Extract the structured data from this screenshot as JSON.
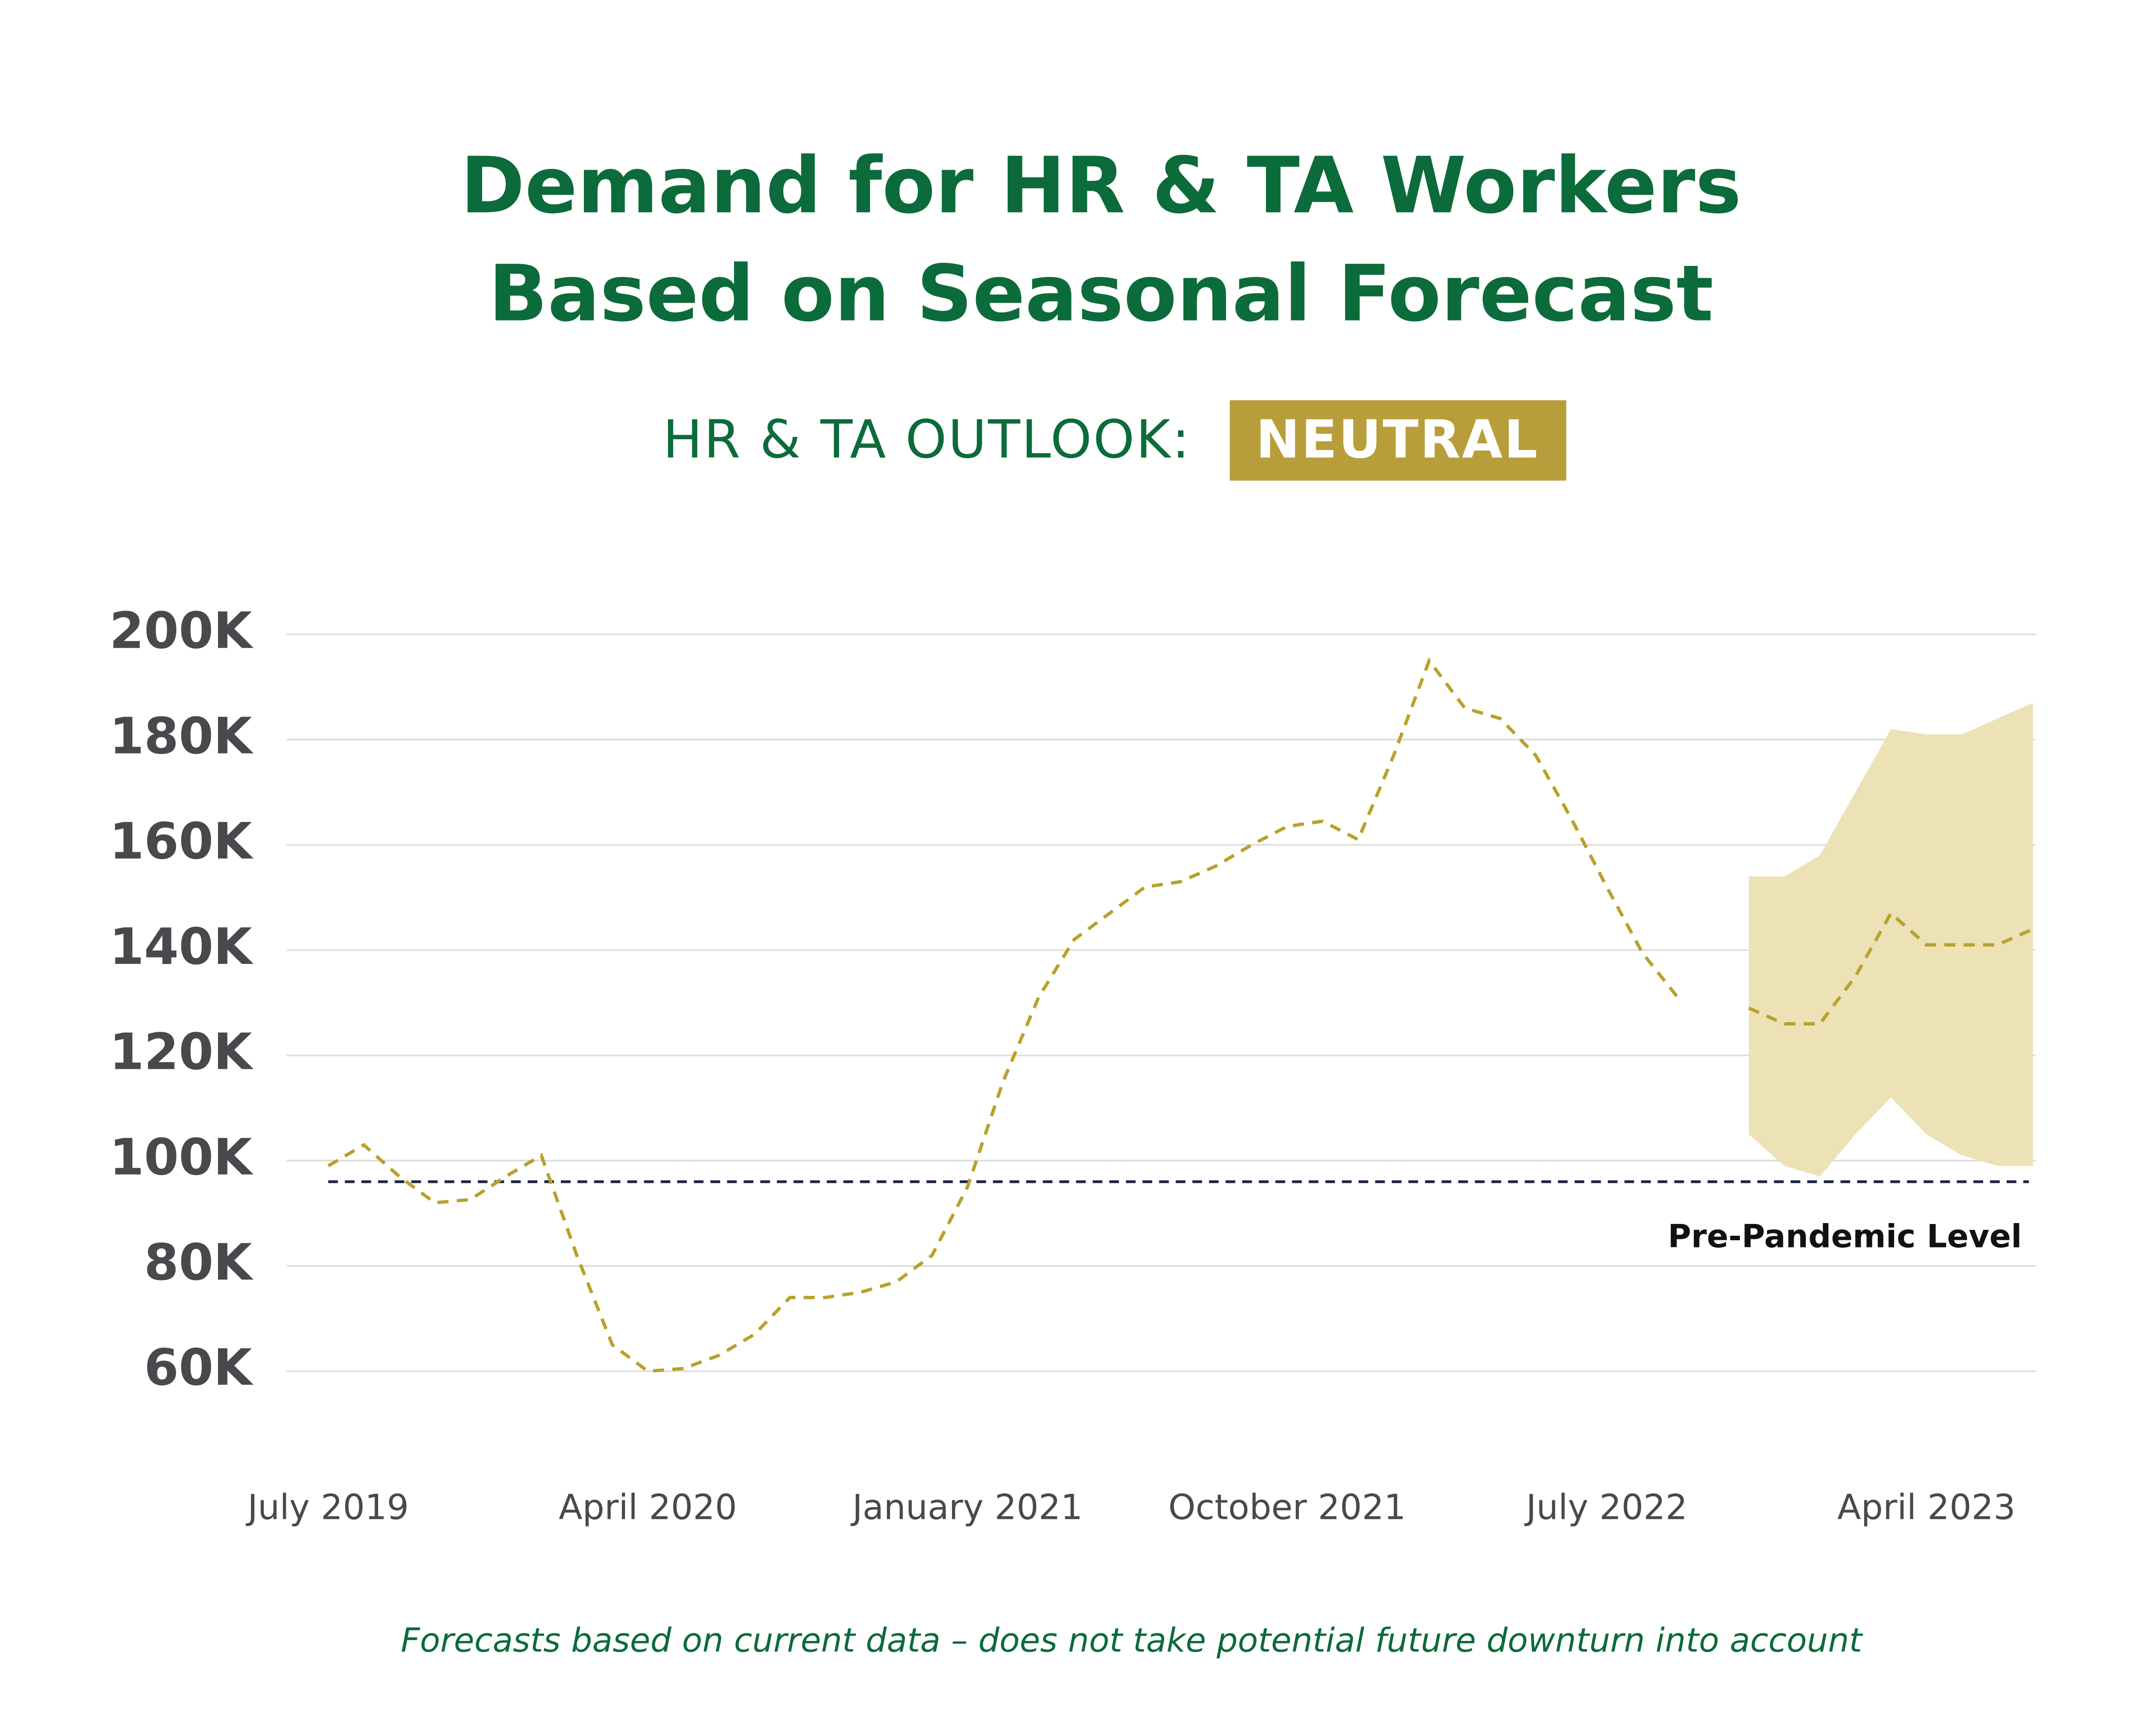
{
  "chart_data": {
    "type": "line",
    "title": [
      "Demand for HR & TA Workers",
      "Based on Seasonal Forecast"
    ],
    "subtitle": "HR & TA OUTLOOK:",
    "outlook": "NEUTRAL",
    "outlook_color": "#b89e3a",
    "footnote": "Forecasts based on current data – does not take potential future downturn into account",
    "categories": [
      "July 2019",
      null,
      null,
      null,
      null,
      null,
      null,
      null,
      null,
      "April 2020",
      null,
      null,
      null,
      null,
      null,
      null,
      null,
      null,
      "January 2021",
      null,
      null,
      null,
      null,
      null,
      null,
      null,
      null,
      "October 2021",
      null,
      null,
      null,
      null,
      null,
      null,
      null,
      null,
      "July 2022",
      null,
      null,
      null,
      null,
      null,
      null,
      null,
      null,
      "April 2023",
      null,
      null,
      null
    ],
    "series": [
      {
        "color": "#b8a22a",
        "dashed": true,
        "values": [
          99,
          103,
          97,
          92,
          92.6,
          97,
          101,
          82,
          65,
          60,
          60.5,
          63,
          67,
          74,
          74,
          75,
          77,
          82,
          95,
          115,
          131,
          142,
          147,
          152,
          153,
          156,
          160,
          163.5,
          164.5,
          161,
          177,
          195,
          186,
          184,
          177,
          165,
          152,
          139.5,
          131,
          null,
          null,
          null,
          null,
          null,
          null,
          null,
          null,
          null,
          null
        ]
      },
      {
        "color": "#b8a22a",
        "dashed": true,
        "values": [
          null,
          null,
          null,
          null,
          null,
          null,
          null,
          null,
          null,
          null,
          null,
          null,
          null,
          null,
          null,
          null,
          null,
          null,
          null,
          null,
          null,
          null,
          null,
          null,
          null,
          null,
          null,
          null,
          null,
          null,
          null,
          null,
          null,
          null,
          null,
          null,
          null,
          null,
          null,
          null,
          129,
          126,
          126,
          135,
          147,
          141,
          141,
          141,
          144
        ]
      }
    ],
    "band": {
      "color": "#ede2b5",
      "upper": [
        null,
        null,
        null,
        null,
        null,
        null,
        null,
        null,
        null,
        null,
        null,
        null,
        null,
        null,
        null,
        null,
        null,
        null,
        null,
        null,
        null,
        null,
        null,
        null,
        null,
        null,
        null,
        null,
        null,
        null,
        null,
        null,
        null,
        null,
        null,
        null,
        null,
        null,
        null,
        null,
        154,
        154,
        158,
        170,
        182,
        181,
        181,
        184,
        187
      ],
      "lower": [
        null,
        null,
        null,
        null,
        null,
        null,
        null,
        null,
        null,
        null,
        null,
        null,
        null,
        null,
        null,
        null,
        null,
        null,
        null,
        null,
        null,
        null,
        null,
        null,
        null,
        null,
        null,
        null,
        null,
        null,
        null,
        null,
        null,
        null,
        null,
        null,
        null,
        null,
        null,
        null,
        105,
        99,
        97,
        105,
        112,
        105,
        101,
        99,
        99
      ]
    },
    "reference_line": {
      "value": 96,
      "label": "Pre-Pandemic Level",
      "color": "#1a2540"
    },
    "ylim": [
      50,
      205
    ],
    "yticks": [
      {
        "value": 60,
        "label": "60K"
      },
      {
        "value": 80,
        "label": "80K"
      },
      {
        "value": 100,
        "label": "100K"
      },
      {
        "value": 120,
        "label": "120K"
      },
      {
        "value": 140,
        "label": "140K"
      },
      {
        "value": 160,
        "label": "160K"
      },
      {
        "value": 180,
        "label": "180K"
      },
      {
        "value": 200,
        "label": "200K"
      }
    ],
    "grid": true
  }
}
